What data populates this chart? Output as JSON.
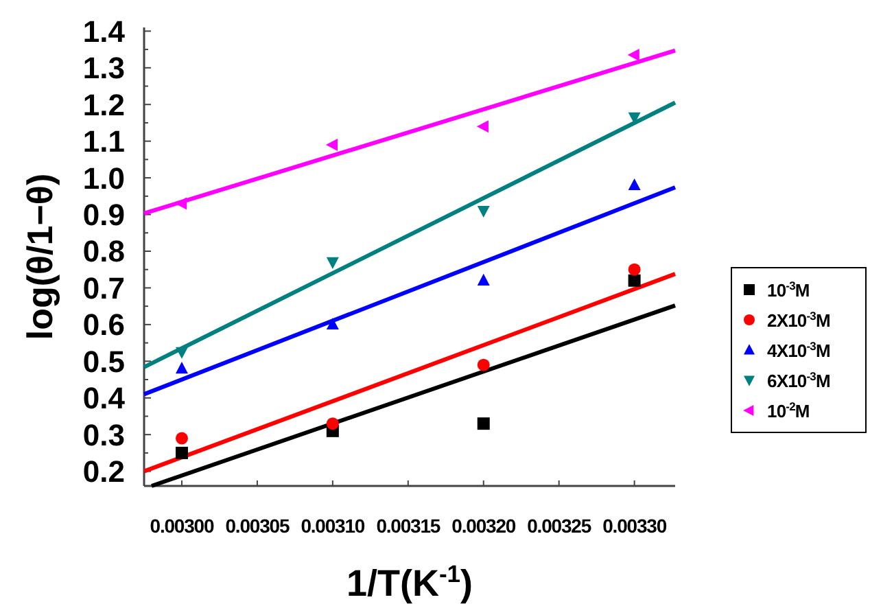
{
  "chart_data": {
    "type": "scatter",
    "xlabel": "1/T(K$^{-1}$)",
    "ylabel": "log(θ/1−θ)",
    "x": [
      0.003,
      0.0031,
      0.0032,
      0.0033
    ],
    "xlim": [
      0.002975,
      0.003327
    ],
    "xticks": [
      {
        "value": 0.003,
        "label": "0.00300"
      },
      {
        "value": 0.00305,
        "label": "0.00305"
      },
      {
        "value": 0.0031,
        "label": "0.00310"
      },
      {
        "value": 0.00315,
        "label": "0.00315"
      },
      {
        "value": 0.0032,
        "label": "0.00320"
      },
      {
        "value": 0.00325,
        "label": "0.00325"
      },
      {
        "value": 0.0033,
        "label": "0.00330"
      }
    ],
    "ylim": [
      0.16,
      1.41
    ],
    "yticks": [
      0.2,
      {
        "value": 0.25,
        "label": null
      },
      0.3,
      {
        "value": 0.35,
        "label": null
      },
      0.4,
      {
        "value": 0.45,
        "label": null
      },
      0.5,
      {
        "value": 0.55,
        "label": null
      },
      0.6,
      {
        "value": 0.65,
        "label": null
      },
      0.7,
      {
        "value": 0.75,
        "label": null
      },
      0.8,
      {
        "value": 0.85,
        "label": null
      },
      0.9,
      {
        "value": 0.95,
        "label": null
      },
      {
        "value": 1,
        "label": "1.0"
      },
      {
        "value": 1.05,
        "label": null
      },
      1.1,
      {
        "value": 1.15,
        "label": null
      },
      1.2,
      {
        "value": 1.25,
        "label": null
      },
      1.3,
      {
        "value": 1.35,
        "label": null
      },
      1.4
    ],
    "grid": false,
    "legend": "right",
    "series": [
      {
        "name": "10$^{-3}$M",
        "color": "#000000",
        "marker": "square",
        "values": [
          0.25,
          0.31,
          0.33,
          0.72
        ]
      },
      {
        "name": "2X10$^{-3}$M",
        "color": "#ff0000",
        "marker": "circle",
        "values": [
          0.29,
          0.33,
          0.49,
          0.75
        ]
      },
      {
        "name": "4X10$^{-3}$M",
        "color": "#0000ff",
        "marker": "triangle",
        "values": [
          0.48,
          0.6,
          0.72,
          0.98
        ]
      },
      {
        "name": "6X10$^{-3}$M",
        "color": "#008080",
        "marker": "triangle-down",
        "values": [
          0.525,
          0.77,
          0.91,
          1.165
        ]
      },
      {
        "name": "10$^{-2}$M",
        "color": "#ff00ff",
        "marker": "triangle-left",
        "values": [
          0.93,
          1.09,
          1.14,
          1.335
        ]
      },
      {
        "type": "line",
        "color": "#000000",
        "marker": "none",
        "x": [
          0.00298,
          0.003327
        ],
        "values": [
          0.16,
          0.652
        ]
      },
      {
        "type": "line",
        "color": "#ff0000",
        "marker": "none",
        "x": [
          0.002975,
          0.003327
        ],
        "values": [
          0.2,
          0.738
        ]
      },
      {
        "type": "line",
        "color": "#0000ff",
        "marker": "none",
        "x": [
          0.002975,
          0.003327
        ],
        "values": [
          0.41,
          0.974
        ]
      },
      {
        "type": "line",
        "color": "#008080",
        "marker": "none",
        "x": [
          0.002975,
          0.003327
        ],
        "values": [
          0.484,
          1.205
        ]
      },
      {
        "type": "line",
        "color": "#ff00ff",
        "marker": "none",
        "x": [
          0.002975,
          0.003327
        ],
        "values": [
          0.903,
          1.347
        ]
      }
    ]
  }
}
